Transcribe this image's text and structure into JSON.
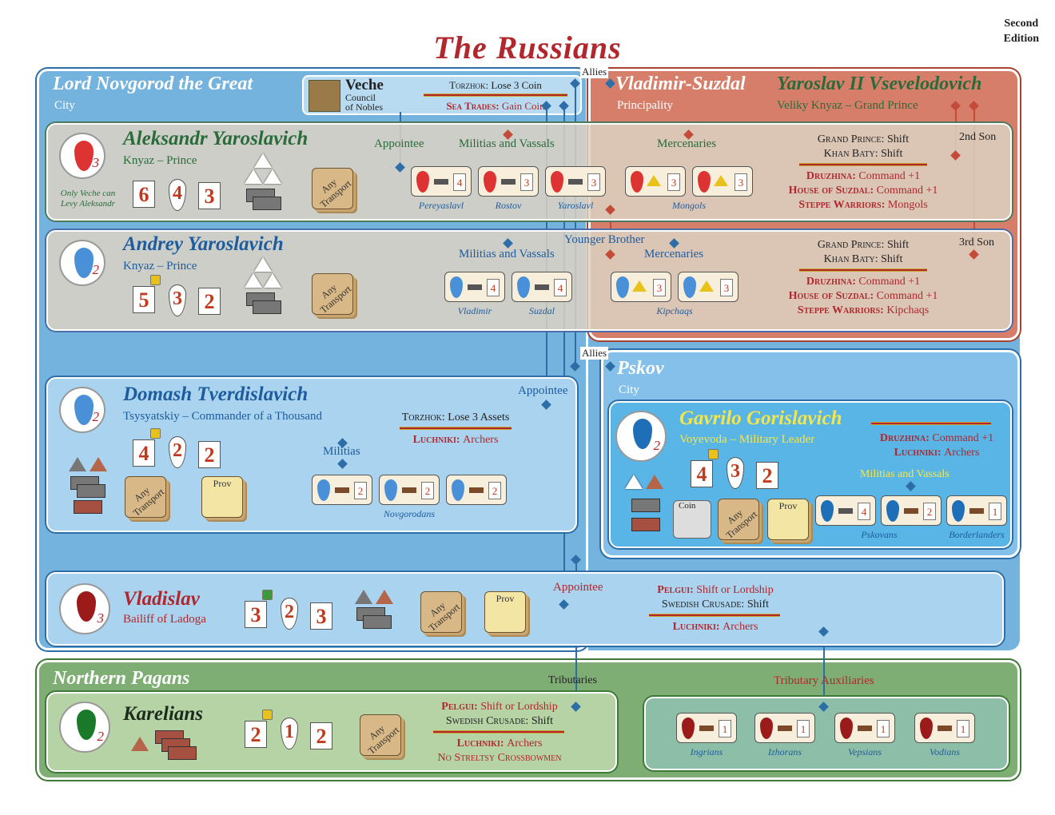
{
  "title": "The Russians",
  "edition": [
    "Second",
    "Edition"
  ],
  "regions": {
    "novgorod": {
      "name": "Lord Novgorod the Great",
      "type": "City"
    },
    "vladimir": {
      "name": "Vladimir-Suzdal",
      "type": "Principality",
      "ruler": "Yaroslav II Vsevelodovich",
      "ruler_title": "Veliky Knyaz – Grand Prince"
    },
    "pskov": {
      "name": "Pskov",
      "type": "City"
    },
    "pagans": {
      "name": "Northern Pagans"
    }
  },
  "veche": {
    "name": "Veche",
    "sub1": "Council",
    "sub2": "of Nobles",
    "torzhok_key": "Torzhok:",
    "torzhok_val": "Lose 3 Coin",
    "sea_key": "Sea Trades:",
    "sea_val": "Gain Coin"
  },
  "allies": "Allies",
  "aleksandr": {
    "name": "Aleksandr Yaroslavich",
    "title": "Knyaz – Prince",
    "seal_num": "3",
    "note1": "Only Veche can",
    "note2": "Levy Aleksandr",
    "stats": [
      "6",
      "4",
      "3"
    ],
    "transport": "Any Transport",
    "appointee": "Appointee",
    "militias_label": "Militias and Vassals",
    "mercs_label": "Mercenaries",
    "son": "2nd Son",
    "units": [
      {
        "v": "4",
        "cap": "Pereyaslavl"
      },
      {
        "v": "3",
        "cap": "Rostov"
      },
      {
        "v": "3",
        "cap": "Yaroslavl"
      },
      {
        "v": "3",
        "cap": ""
      },
      {
        "v": "3",
        "cap": ""
      }
    ],
    "mongols": "Mongols",
    "notes": {
      "l1k": "Grand Prince:",
      "l1v": "Shift",
      "l2k": "Khan Baty:",
      "l2v": "Shift",
      "l3k": "Druzhina:",
      "l3v": "Command +1",
      "l4k": "House of Suzdal:",
      "l4v": "Command +1",
      "l5k": "Steppe Warriors:",
      "l5v": "Mongols"
    }
  },
  "andrey": {
    "name": "Andrey Yaroslavich",
    "title": "Knyaz – Prince",
    "seal_num": "2",
    "stats": [
      "5",
      "3",
      "2"
    ],
    "transport": "Any Transport",
    "younger": "Younger Brother",
    "militias_label": "Militias and Vassals",
    "mercs_label": "Mercenaries",
    "son": "3rd Son",
    "units": [
      {
        "v": "4",
        "cap": "Vladimir"
      },
      {
        "v": "4",
        "cap": "Suzdal"
      },
      {
        "v": "3",
        "cap": ""
      },
      {
        "v": "3",
        "cap": ""
      }
    ],
    "kipchaqs": "Kipchaqs",
    "notes": {
      "l1k": "Grand Prince:",
      "l1v": "Shift",
      "l2k": "Khan Baty:",
      "l2v": "Shift",
      "l3k": "Druzhina:",
      "l3v": "Command +1",
      "l4k": "House of Suzdal:",
      "l4v": "Command +1",
      "l5k": "Steppe Warriors:",
      "l5v": "Kipchaqs"
    }
  },
  "domash": {
    "name": "Domash Tverdislavich",
    "title": "Tsysyatskiy – Commander of a Thousand",
    "seal_num": "2",
    "stats": [
      "4",
      "2",
      "2"
    ],
    "transport": "Any Transport",
    "prov": "Prov",
    "appointee": "Appointee",
    "militias_label": "Militias",
    "units": [
      {
        "v": "2"
      },
      {
        "v": "2"
      },
      {
        "v": "2"
      }
    ],
    "novgorodans": "Novgorodans",
    "notes": {
      "l1k": "Torzhok:",
      "l1v": "Lose 3 Assets",
      "l2k": "Luchniki:",
      "l2v": "Archers"
    }
  },
  "gavrilo": {
    "name": "Gavrilo Gorislavich",
    "title": "Voyevoda – Military Leader",
    "seal_num": "2",
    "stats": [
      "4",
      "3",
      "2"
    ],
    "coin": "Coin",
    "transport": "Any Transport",
    "prov": "Prov",
    "militias_label": "Militias and Vassals",
    "units": [
      {
        "v": "4"
      },
      {
        "v": "2"
      },
      {
        "v": "1"
      }
    ],
    "pskovans": "Pskovans",
    "borderlanders": "Borderlanders",
    "notes": {
      "l1k": "Druzhina:",
      "l1v": "Command +1",
      "l2k": "Luchniki:",
      "l2v": "Archers"
    }
  },
  "vladislav": {
    "name": "Vladislav",
    "title": "Bailiff of Ladoga",
    "seal_num": "3",
    "stats": [
      "3",
      "2",
      "3"
    ],
    "transport": "Any Transport",
    "prov": "Prov",
    "appointee": "Appointee",
    "notes": {
      "l1k": "Pelgui:",
      "l1v": "Shift or Lordship",
      "l2k": "Swedish Crusade:",
      "l2v": "Shift",
      "l3k": "Luchniki:",
      "l3v": "Archers"
    }
  },
  "karelians": {
    "name": "Karelians",
    "seal_num": "2",
    "stats": [
      "2",
      "1",
      "2"
    ],
    "transport": "Any Transport",
    "tributaries": "Tributaries",
    "notes": {
      "l1k": "Pelgui:",
      "l1v": "Shift or Lordship",
      "l2k": "Swedish Crusade:",
      "l2v": "Shift",
      "l3k": "Luchniki:",
      "l3v": "Archers",
      "l4": "No Streltsy Crossbowmen"
    }
  },
  "tributary": {
    "label": "Tributary Auxiliaries",
    "units": [
      {
        "v": "1",
        "cap": "Ingrians"
      },
      {
        "v": "1",
        "cap": "Izhorans"
      },
      {
        "v": "1",
        "cap": "Vepsians"
      },
      {
        "v": "1",
        "cap": "Vodians"
      }
    ]
  },
  "colors": {
    "novgorod": "#74b3dd",
    "vladimir": "#d77e6a",
    "pagans": "#7fae74",
    "accent_red": "#b0272d"
  }
}
